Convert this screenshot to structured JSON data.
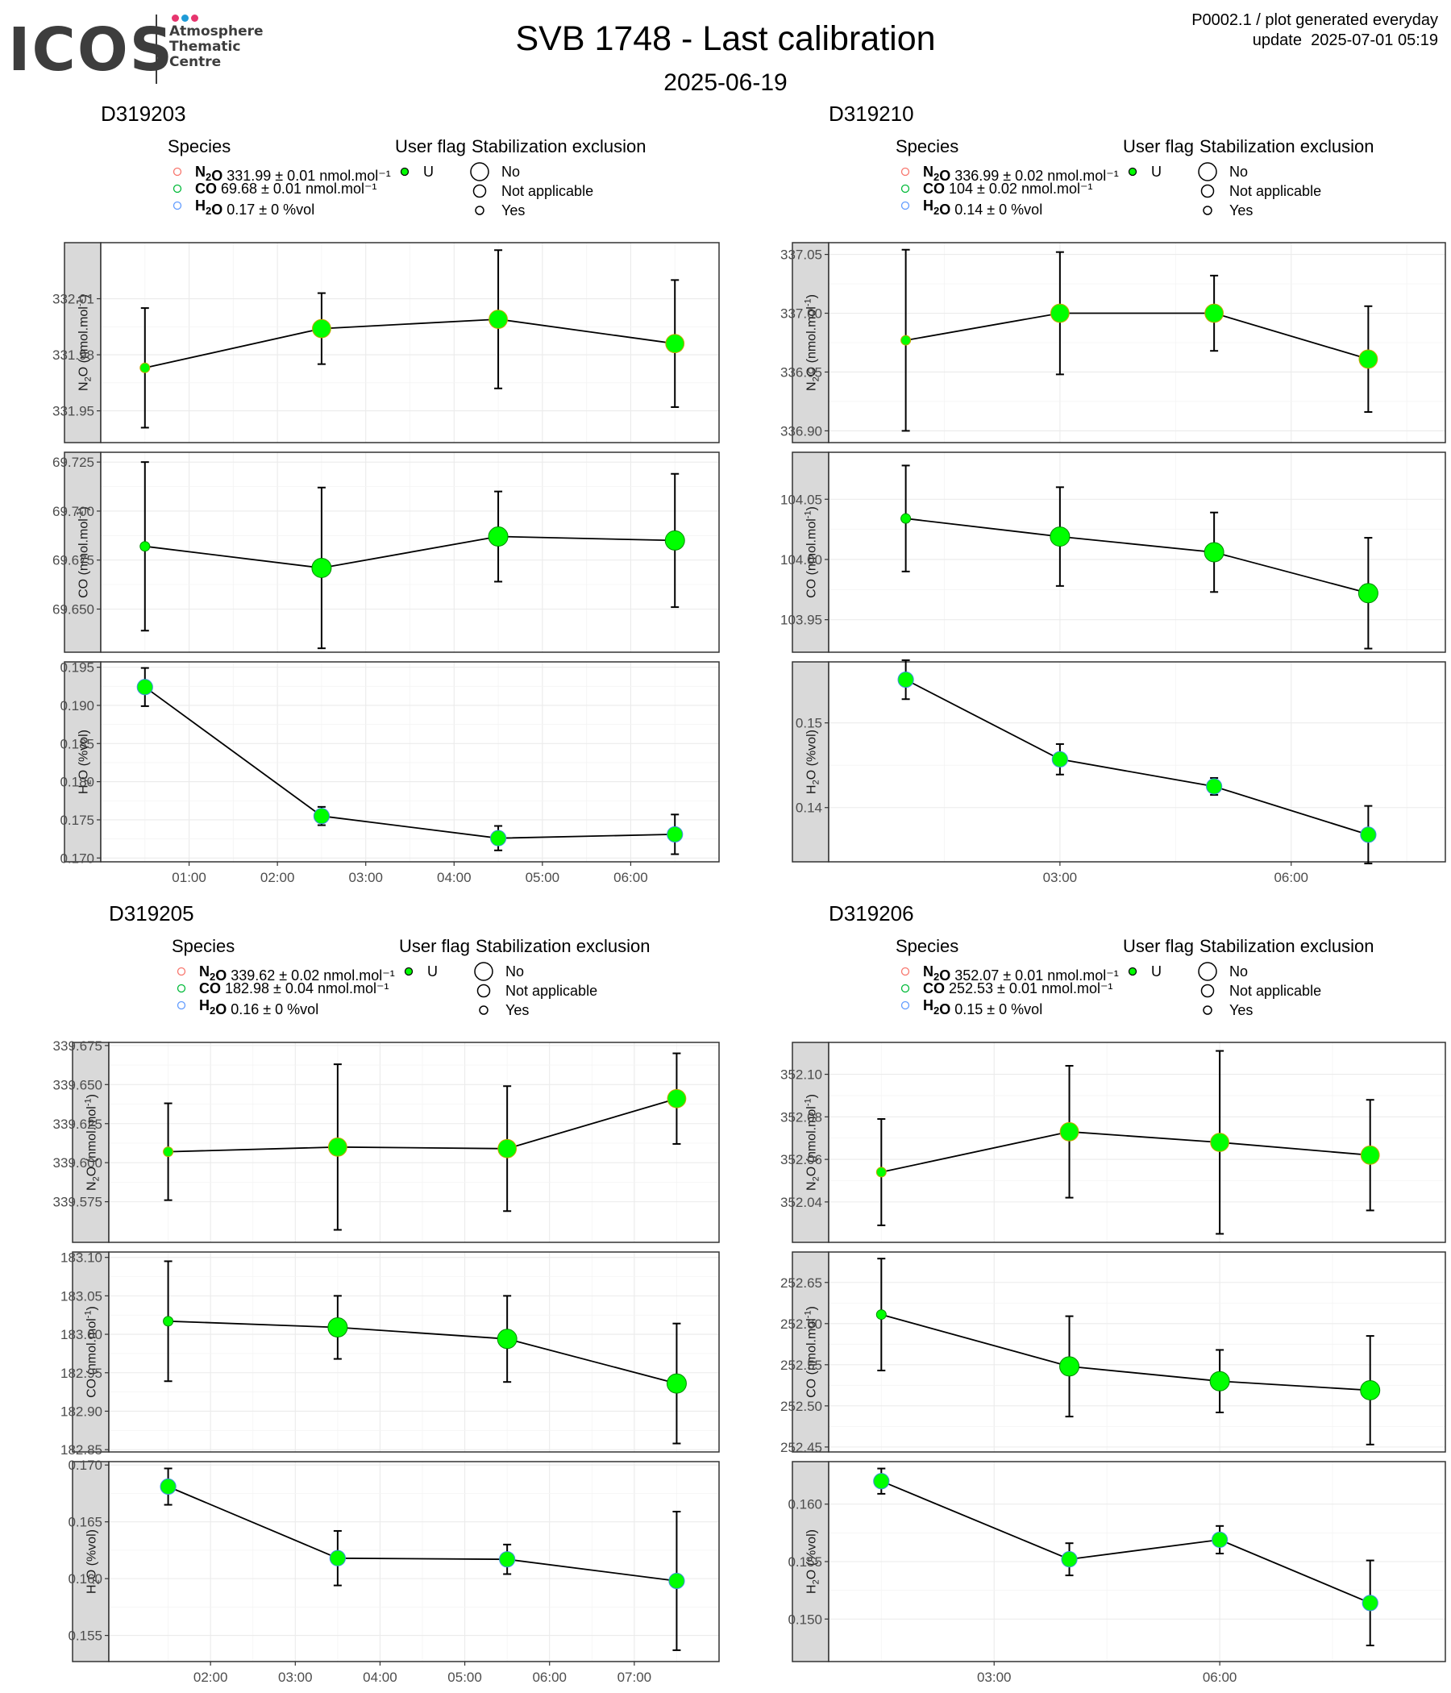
{
  "header": {
    "logo_text": "ICOS",
    "logo_subtitle_lines": [
      "Atmosphere",
      "Thematic",
      "Centre"
    ],
    "logo_dot_colors": [
      "#e6356e",
      "#1f9bd7",
      "#e6356e"
    ],
    "title": "SVB 1748 - Last calibration",
    "date": "2025-06-19",
    "meta_line1": "P0002.1 / plot generated everyday",
    "meta_line2": "update  2025-07-01 05:19"
  },
  "legend_labels": {
    "species_title": "Species",
    "user_flag_title": "User flag",
    "stab_title": "Stabilization exclusion",
    "user_flag_value": "U",
    "stab_values": [
      "No",
      "Not applicable",
      "Yes"
    ]
  },
  "colors": {
    "n2o_legend": "#f8766d",
    "co_legend": "#00ba38",
    "h2o_legend": "#619cff",
    "point_fill": "#00ff00",
    "line": "#000000"
  },
  "chart_data": [
    {
      "type": "line",
      "cylinder": "D319203",
      "legend": [
        {
          "species": "N2O",
          "text": "331.99 ± 0.01 nmol.mol⁻¹"
        },
        {
          "species": "CO",
          "text": "69.68 ± 0.01 nmol.mol⁻¹"
        },
        {
          "species": "H2O",
          "text": "0.17 ± 0 %vol"
        }
      ],
      "xlim": [
        0.0,
        7.0
      ],
      "xticks": [
        {
          "v": 1,
          "label": "01:00"
        },
        {
          "v": 2,
          "label": "02:00"
        },
        {
          "v": 3,
          "label": "03:00"
        },
        {
          "v": 4,
          "label": "04:00"
        },
        {
          "v": 5,
          "label": "05:00"
        },
        {
          "v": 6,
          "label": "06:00"
        }
      ],
      "x": [
        0.5,
        2.5,
        4.5,
        6.5
      ],
      "panels": [
        {
          "label": "N2O (nmol.mol-1)",
          "ylim": [
            331.933,
            332.04
          ],
          "yticks": [
            {
              "v": 331.95,
              "label": "331.95"
            },
            {
              "v": 331.98,
              "label": "331.98"
            },
            {
              "v": 332.01,
              "label": "332.01"
            }
          ],
          "y": [
            331.973,
            331.994,
            331.999,
            331.986
          ],
          "err": [
            0.032,
            0.019,
            0.037,
            0.034
          ],
          "size": [
            0.5,
            0.95,
            0.95,
            0.95
          ]
        },
        {
          "label": "CO (nmol.mol-1)",
          "ylim": [
            69.628,
            69.73
          ],
          "yticks": [
            {
              "v": 69.65,
              "label": "69.650"
            },
            {
              "v": 69.675,
              "label": "69.675"
            },
            {
              "v": 69.7,
              "label": "69.700"
            },
            {
              "v": 69.725,
              "label": "69.725"
            }
          ],
          "y": [
            69.682,
            69.671,
            69.687,
            69.685
          ],
          "err": [
            0.043,
            0.041,
            0.023,
            0.034
          ],
          "size": [
            0.5,
            1.0,
            1.0,
            1.0
          ]
        },
        {
          "label": "H2O (%vol)",
          "ylim": [
            0.1695,
            0.1957
          ],
          "yticks": [
            {
              "v": 0.17,
              "label": "0.170"
            },
            {
              "v": 0.175,
              "label": "0.175"
            },
            {
              "v": 0.18,
              "label": "0.180"
            },
            {
              "v": 0.185,
              "label": "0.185"
            },
            {
              "v": 0.19,
              "label": "0.190"
            },
            {
              "v": 0.195,
              "label": "0.195"
            }
          ],
          "y": [
            0.1924,
            0.1755,
            0.1726,
            0.1731
          ],
          "err": [
            0.0025,
            0.0012,
            0.0016,
            0.0026
          ],
          "size": [
            0.8,
            0.8,
            0.8,
            0.8
          ]
        }
      ]
    },
    {
      "type": "line",
      "cylinder": "D319210",
      "legend": [
        {
          "species": "N2O",
          "text": "336.99 ± 0.02 nmol.mol⁻¹"
        },
        {
          "species": "CO",
          "text": "104 ± 0.02 nmol.mol⁻¹"
        },
        {
          "species": "H2O",
          "text": "0.14 ± 0 %vol"
        }
      ],
      "xlim": [
        0.0,
        8.0
      ],
      "xticks": [
        {
          "v": 3,
          "label": "03:00"
        },
        {
          "v": 6,
          "label": "06:00"
        }
      ],
      "x": [
        1.0,
        3.0,
        5.0,
        7.0
      ],
      "panels": [
        {
          "label": "N2O (nmol.mol-1)",
          "ylim": [
            336.89,
            337.06
          ],
          "yticks": [
            {
              "v": 336.9,
              "label": "336.90"
            },
            {
              "v": 336.95,
              "label": "336.95"
            },
            {
              "v": 337.0,
              "label": "337.00"
            },
            {
              "v": 337.05,
              "label": "337.05"
            }
          ],
          "y": [
            336.977,
            337.0,
            337.0,
            336.961
          ],
          "err": [
            0.077,
            0.052,
            0.032,
            0.045
          ],
          "size": [
            0.5,
            0.95,
            0.95,
            0.95
          ]
        },
        {
          "label": "CO (nmol.mol-1)",
          "ylim": [
            103.923,
            104.089
          ],
          "yticks": [
            {
              "v": 103.95,
              "label": "103.95"
            },
            {
              "v": 104.0,
              "label": "104.00"
            },
            {
              "v": 104.05,
              "label": "104.05"
            }
          ],
          "y": [
            104.034,
            104.019,
            104.006,
            103.972
          ],
          "err": [
            0.044,
            0.041,
            0.033,
            0.046
          ],
          "size": [
            0.5,
            1.0,
            1.0,
            1.0
          ]
        },
        {
          "label": "H2O (%vol)",
          "ylim": [
            0.1336,
            0.1572
          ],
          "yticks": [
            {
              "v": 0.14,
              "label": "0.14"
            },
            {
              "v": 0.15,
              "label": "0.15"
            }
          ],
          "y": [
            0.1551,
            0.1457,
            0.1425,
            0.1368
          ],
          "err": [
            0.0023,
            0.0018,
            0.001,
            0.0034
          ],
          "size": [
            0.8,
            0.8,
            0.8,
            0.8
          ]
        }
      ]
    },
    {
      "type": "line",
      "cylinder": "D319205",
      "legend": [
        {
          "species": "N2O",
          "text": "339.62 ± 0.02 nmol.mol⁻¹"
        },
        {
          "species": "CO",
          "text": "182.98 ± 0.04 nmol.mol⁻¹"
        },
        {
          "species": "H2O",
          "text": "0.16 ± 0 %vol"
        }
      ],
      "xlim": [
        0.8,
        8.0
      ],
      "xticks": [
        {
          "v": 2,
          "label": "02:00"
        },
        {
          "v": 3,
          "label": "03:00"
        },
        {
          "v": 4,
          "label": "04:00"
        },
        {
          "v": 5,
          "label": "05:00"
        },
        {
          "v": 6,
          "label": "06:00"
        },
        {
          "v": 7,
          "label": "07:00"
        }
      ],
      "x": [
        1.5,
        3.5,
        5.5,
        7.5
      ],
      "panels": [
        {
          "label": "N2O (nmol.mol-1)",
          "ylim": [
            339.549,
            339.677
          ],
          "yticks": [
            {
              "v": 339.575,
              "label": "339.575"
            },
            {
              "v": 339.6,
              "label": "339.600"
            },
            {
              "v": 339.625,
              "label": "339.625"
            },
            {
              "v": 339.65,
              "label": "339.650"
            },
            {
              "v": 339.675,
              "label": "339.675"
            }
          ],
          "y": [
            339.607,
            339.61,
            339.609,
            339.641
          ],
          "err": [
            0.031,
            0.053,
            0.04,
            0.029
          ],
          "size": [
            0.5,
            0.95,
            0.95,
            0.95
          ]
        },
        {
          "label": "CO (nmol.mol-1)",
          "ylim": [
            182.847,
            183.107
          ],
          "yticks": [
            {
              "v": 182.85,
              "label": "182.85"
            },
            {
              "v": 182.9,
              "label": "182.90"
            },
            {
              "v": 182.95,
              "label": "182.95"
            },
            {
              "v": 183.0,
              "label": "183.00"
            },
            {
              "v": 183.05,
              "label": "183.05"
            },
            {
              "v": 183.1,
              "label": "183.10"
            }
          ],
          "y": [
            183.017,
            183.009,
            182.994,
            182.936
          ],
          "err": [
            0.078,
            0.041,
            0.056,
            0.078
          ],
          "size": [
            0.5,
            1.0,
            1.0,
            1.0
          ]
        },
        {
          "label": "H2O (%vol)",
          "ylim": [
            0.1527,
            0.1703
          ],
          "yticks": [
            {
              "v": 0.155,
              "label": "0.155"
            },
            {
              "v": 0.16,
              "label": "0.160"
            },
            {
              "v": 0.165,
              "label": "0.165"
            },
            {
              "v": 0.17,
              "label": "0.170"
            }
          ],
          "y": [
            0.1681,
            0.1618,
            0.1617,
            0.1598
          ],
          "err": [
            0.0016,
            0.0024,
            0.0013,
            0.0061
          ],
          "size": [
            0.8,
            0.8,
            0.8,
            0.8
          ]
        }
      ]
    },
    {
      "type": "line",
      "cylinder": "D319206",
      "legend": [
        {
          "species": "N2O",
          "text": "352.07 ± 0.01 nmol.mol⁻¹"
        },
        {
          "species": "CO",
          "text": "252.53 ± 0.01 nmol.mol⁻¹"
        },
        {
          "species": "H2O",
          "text": "0.15 ± 0 %vol"
        }
      ],
      "xlim": [
        0.8,
        9.0
      ],
      "xticks": [
        {
          "v": 3,
          "label": "03:00"
        },
        {
          "v": 6,
          "label": "06:00"
        }
      ],
      "x": [
        1.5,
        4.0,
        6.0,
        8.0
      ],
      "panels": [
        {
          "label": "N2O (nmol.mol-1)",
          "ylim": [
            352.021,
            352.115
          ],
          "yticks": [
            {
              "v": 352.04,
              "label": "352.04"
            },
            {
              "v": 352.06,
              "label": "352.06"
            },
            {
              "v": 352.08,
              "label": "352.08"
            },
            {
              "v": 352.1,
              "label": "352.10"
            }
          ],
          "y": [
            352.054,
            352.073,
            352.068,
            352.062
          ],
          "err": [
            0.025,
            0.031,
            0.043,
            0.026
          ],
          "size": [
            0.5,
            0.95,
            0.95,
            0.95
          ]
        },
        {
          "label": "CO (nmol.mol-1)",
          "ylim": [
            252.444,
            252.687
          ],
          "yticks": [
            {
              "v": 252.45,
              "label": "252.45"
            },
            {
              "v": 252.5,
              "label": "252.50"
            },
            {
              "v": 252.55,
              "label": "252.55"
            },
            {
              "v": 252.6,
              "label": "252.60"
            },
            {
              "v": 252.65,
              "label": "252.65"
            }
          ],
          "y": [
            252.611,
            252.548,
            252.53,
            252.519
          ],
          "err": [
            0.068,
            0.061,
            0.038,
            0.066
          ],
          "size": [
            0.5,
            1.0,
            1.0,
            1.0
          ]
        },
        {
          "label": "H2O (%vol)",
          "ylim": [
            0.1463,
            0.1637
          ],
          "yticks": [
            {
              "v": 0.15,
              "label": "0.150"
            },
            {
              "v": 0.155,
              "label": "0.155"
            },
            {
              "v": 0.16,
              "label": "0.160"
            }
          ],
          "y": [
            0.162,
            0.1552,
            0.1569,
            0.1514
          ],
          "err": [
            0.0011,
            0.0014,
            0.0012,
            0.0037
          ],
          "size": [
            0.8,
            0.8,
            0.8,
            0.8
          ]
        }
      ]
    }
  ]
}
